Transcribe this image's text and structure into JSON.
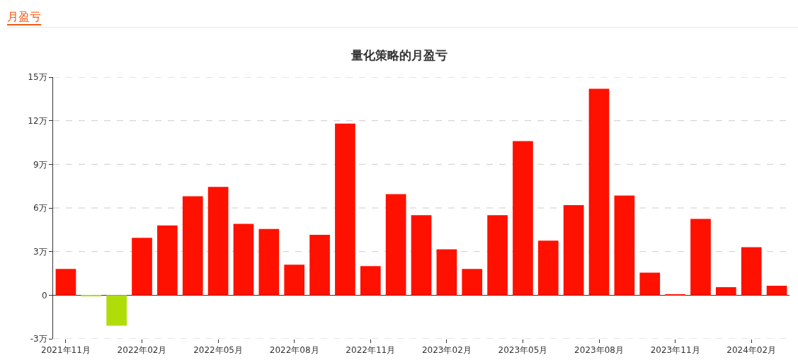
{
  "chart_data": {
    "type": "bar",
    "title": "量化策略的月盈亏",
    "annotations": [
      "月盈亏"
    ],
    "categories": [
      "2021年11月",
      null,
      null,
      "2022年02月",
      null,
      null,
      "2022年05月",
      null,
      null,
      "2022年08月",
      null,
      null,
      "2022年11月",
      null,
      null,
      "2023年02月",
      null,
      null,
      "2023年05月",
      null,
      null,
      "2023年08月",
      null,
      null,
      "2023年11月",
      null,
      null,
      "2024年02月",
      null
    ],
    "values": [
      1.8,
      -0.05,
      -2.1,
      3.95,
      4.8,
      6.8,
      7.45,
      4.9,
      4.55,
      2.1,
      4.15,
      11.8,
      2.0,
      6.95,
      5.5,
      3.15,
      1.8,
      5.5,
      10.6,
      3.75,
      6.2,
      14.2,
      6.85,
      1.55,
      0.02,
      5.25,
      0.55,
      3.3,
      0.65
    ],
    "colors": [
      "#ff1100",
      "#b0dd0a",
      "#b0dd0a",
      "#ff1100",
      "#ff1100",
      "#ff1100",
      "#ff1100",
      "#ff1100",
      "#ff1100",
      "#ff1100",
      "#ff1100",
      "#ff1100",
      "#ff1100",
      "#ff1100",
      "#ff1100",
      "#ff1100",
      "#ff1100",
      "#ff1100",
      "#ff1100",
      "#ff1100",
      "#ff1100",
      "#ff1100",
      "#ff1100",
      "#ff1100",
      "#ff1100",
      "#ff1100",
      "#ff1100",
      "#ff1100",
      "#ff1100"
    ],
    "ylim": [
      -3,
      15
    ],
    "yticks": [
      {
        "value": -3,
        "label": "-3万"
      },
      {
        "value": 0,
        "label": "0"
      },
      {
        "value": 3,
        "label": "3万"
      },
      {
        "value": 6,
        "label": "6万"
      },
      {
        "value": 9,
        "label": "9万"
      },
      {
        "value": 12,
        "label": "12万"
      },
      {
        "value": 15,
        "label": "15万"
      }
    ],
    "grid": "y"
  }
}
